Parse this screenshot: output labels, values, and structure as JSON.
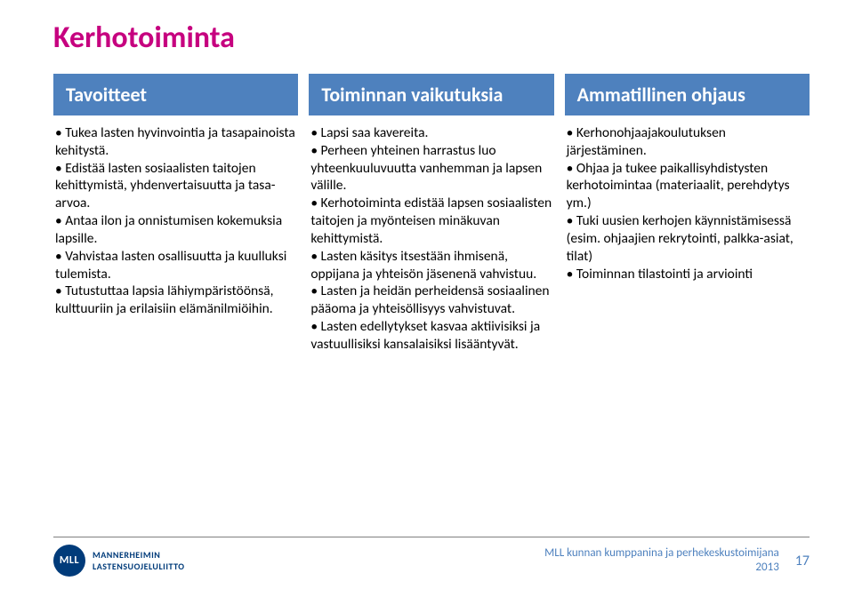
{
  "title": "Kerhotoiminta",
  "colors": {
    "accent_title": "#c6007f",
    "header_bg": "#4e81be",
    "header_text": "#ffffff",
    "body_text": "#000000",
    "footer_rule": "#7f7f7f",
    "footer_text": "#4e81be",
    "logo_bg": "#003b7a"
  },
  "columns": [
    {
      "header": "Tavoitteet",
      "body": "• Tukea lasten hyvinvointia ja tasapainoista kehitystä.\n• Edistää lasten sosiaalisten taitojen kehittymistä, yhdenvertaisuutta ja tasa-arvoa.\n• Antaa ilon ja onnistumisen kokemuksia lapsille.\n• Vahvistaa lasten osallisuutta ja kuulluksi tulemista.\n• Tutustuttaa lapsia lähiympäristöönsä, kulttuuriin ja erilaisiin elämänilmiöihin."
    },
    {
      "header": "Toiminnan vaikutuksia",
      "body": "• Lapsi saa kavereita.\n• Perheen yhteinen harrastus luo yhteenkuuluvuutta vanhemman ja lapsen välille.\n• Kerhotoiminta edistää lapsen sosiaalisten taitojen ja myönteisen minäkuvan kehittymistä.\n• Lasten käsitys itsestään ihmisenä, oppijana ja yhteisön jäsenenä vahvistuu.\n• Lasten ja heidän perheidensä sosiaalinen pääoma ja yhteisöllisyys vahvistuvat.\n• Lasten edellytykset kasvaa aktiivisiksi ja vastuullisiksi kansalaisiksi lisääntyvät."
    },
    {
      "header": "Ammatillinen ohjaus",
      "body": "• Kerhonohjaajakoulutuksen järjestäminen.\n• Ohjaa ja tukee paikallisyhdistysten kerhotoimintaa (materiaalit, perehdytys ym.)\n• Tuki uusien kerhojen käynnistämisessä (esim. ohjaajien rekrytointi, palkka-asiat, tilat)\n• Toiminnan tilastointi ja arviointi"
    }
  ],
  "footer": {
    "logo_mark": "MLL",
    "logo_text_line1": "MANNERHEIMIN",
    "logo_text_line2": "LASTENSUOJELULIITTO",
    "center_line1": "MLL kunnan kumppanina ja perhekeskustoimijana",
    "center_line2": "2013",
    "page": "17"
  }
}
